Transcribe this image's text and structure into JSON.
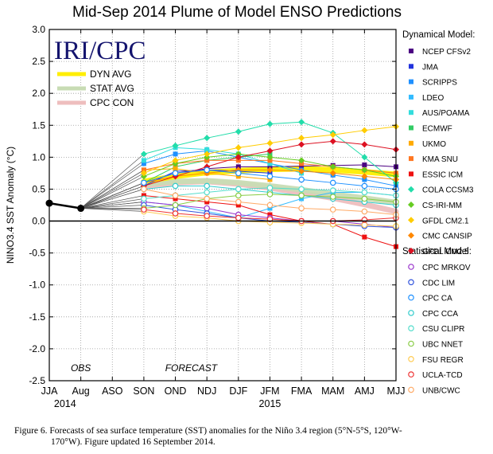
{
  "caption": {
    "line1": "Figure 6. Forecasts of sea surface temperature (SST) anomalies for the Niño 3.4 region (5°N-5°S, 120°W-",
    "line2": "170°W).  Figure updated 16 September 2014."
  },
  "chart_data": {
    "type": "line",
    "title": "Mid-Sep 2014 Plume of Model ENSO Predictions",
    "ylabel": "NINO3.4 SST Anomaly (°C)",
    "xlabel": "",
    "ylim": [
      -2.5,
      3.0
    ],
    "yticks": [
      3.0,
      2.5,
      2.0,
      1.5,
      1.0,
      0.5,
      0.0,
      -0.5,
      -1.0,
      -1.5,
      -2.0,
      -2.5
    ],
    "ytick_labels": [
      "3.0",
      "2.5",
      "2.0",
      "1.5",
      "1.0",
      "0.5",
      "0.0",
      "-0.5",
      "-1.0",
      "-1.5",
      "-2.0",
      "-2.5"
    ],
    "categories": [
      "JJA",
      "Aug",
      "ASO",
      "SON",
      "OND",
      "NDJ",
      "DJF",
      "JFM",
      "FMA",
      "MAM",
      "AMJ",
      "MJJ"
    ],
    "year_labels": [
      {
        "text": "2014",
        "at": 0.5
      },
      {
        "text": "2015",
        "at": 7.0
      }
    ],
    "annotations": [
      {
        "text": "OBS",
        "x": 1.0,
        "y": -2.3
      },
      {
        "text": "FORECAST",
        "x": 4.5,
        "y": -2.3
      }
    ],
    "watermark": "IRI/CPC",
    "observed": {
      "x": [
        0,
        1
      ],
      "y": [
        0.28,
        0.2
      ]
    },
    "averages": [
      {
        "name": "DYN AVG",
        "color": "#ffee00",
        "x": [
          3,
          4,
          5,
          6,
          7,
          8,
          9,
          10,
          11
        ],
        "y": [
          0.62,
          0.7,
          0.76,
          0.79,
          0.81,
          0.82,
          0.8,
          0.77,
          0.73
        ]
      },
      {
        "name": "STAT AVG",
        "color": "#c8dcb4",
        "x": [
          3,
          4,
          5,
          6,
          7,
          8,
          9,
          10,
          11
        ],
        "y": [
          0.58,
          0.62,
          0.63,
          0.6,
          0.55,
          0.49,
          0.42,
          0.36,
          0.29
        ]
      },
      {
        "name": "CPC CON",
        "color": "#eebebe",
        "x": [
          3,
          4,
          5,
          6,
          7,
          8,
          9,
          10,
          11
        ],
        "y": [
          0.55,
          0.6,
          0.62,
          0.58,
          0.52,
          0.44,
          0.36,
          0.26,
          0.15
        ]
      }
    ],
    "legend_dynamical_title": "Dynamical Model:",
    "legend_statistical_title": "Statistical Model:",
    "series": [
      {
        "name": "NCEP CFSv2",
        "group": "dynamical",
        "color": "#4b0082",
        "marker": "square",
        "x": [
          3,
          4,
          5,
          6,
          7,
          8,
          9,
          10,
          11
        ],
        "y": [
          0.6,
          0.75,
          0.82,
          0.85,
          0.85,
          0.86,
          0.87,
          0.88,
          0.85
        ]
      },
      {
        "name": "JMA",
        "group": "dynamical",
        "color": "#2233dd",
        "marker": "square",
        "x": [
          3,
          4,
          5,
          6,
          7
        ],
        "y": [
          0.55,
          0.78,
          0.8,
          0.78,
          0.75
        ]
      },
      {
        "name": "SCRIPPS",
        "group": "dynamical",
        "color": "#1e90ff",
        "marker": "square",
        "x": [
          3,
          4,
          5,
          6,
          7,
          8,
          9,
          10,
          11
        ],
        "y": [
          0.9,
          1.05,
          1.1,
          1.0,
          0.9,
          0.8,
          0.72,
          0.65,
          0.55
        ]
      },
      {
        "name": "LDEO",
        "group": "dynamical",
        "color": "#33bbff",
        "marker": "square",
        "x": [
          3,
          4,
          5,
          6,
          7,
          8,
          9,
          10,
          11
        ],
        "y": [
          0.3,
          0.25,
          0.15,
          0.05,
          0.2,
          0.35,
          0.45,
          0.45,
          0.4
        ]
      },
      {
        "name": "AUS/POAMA",
        "group": "dynamical",
        "color": "#33dddd",
        "marker": "square",
        "x": [
          3,
          4,
          5,
          6,
          7,
          8
        ],
        "y": [
          0.95,
          1.15,
          1.12,
          1.05,
          0.9,
          0.75
        ]
      },
      {
        "name": "ECMWF",
        "group": "dynamical",
        "color": "#33cc66",
        "marker": "square",
        "x": [
          3,
          4,
          5,
          6,
          7
        ],
        "y": [
          0.6,
          0.85,
          0.95,
          1.0,
          1.05
        ]
      },
      {
        "name": "UKMO",
        "group": "dynamical",
        "color": "#ffaa00",
        "marker": "square",
        "x": [
          3,
          4,
          5,
          6,
          7
        ],
        "y": [
          0.8,
          0.82,
          0.75,
          0.7,
          0.65
        ]
      },
      {
        "name": "KMA SNU",
        "group": "dynamical",
        "color": "#ff7722",
        "marker": "square",
        "x": [
          3,
          4,
          5,
          6,
          7,
          8,
          9,
          10,
          11
        ],
        "y": [
          0.8,
          0.9,
          0.95,
          0.95,
          0.95,
          0.9,
          0.85,
          0.8,
          0.75
        ]
      },
      {
        "name": "ESSIC ICM",
        "group": "dynamical",
        "color": "#ee1111",
        "marker": "square",
        "x": [
          3,
          4,
          5,
          6,
          7,
          8,
          9,
          10,
          11
        ],
        "y": [
          0.4,
          0.35,
          0.3,
          0.25,
          0.1,
          0.0,
          -0.05,
          -0.25,
          -0.4
        ]
      },
      {
        "name": "COLA CCSM3",
        "group": "dynamical",
        "color": "#22ddaa",
        "marker": "diamond",
        "x": [
          3,
          4,
          5,
          6,
          7,
          8,
          9,
          10,
          11
        ],
        "y": [
          1.05,
          1.18,
          1.3,
          1.4,
          1.52,
          1.55,
          1.38,
          1.0,
          0.6
        ]
      },
      {
        "name": "CS-IRI-MM",
        "group": "dynamical",
        "color": "#66cc22",
        "marker": "diamond",
        "x": [
          3,
          4,
          5,
          6,
          7,
          8,
          9,
          10,
          11
        ],
        "y": [
          0.7,
          0.9,
          1.0,
          1.05,
          1.0,
          0.95,
          0.85,
          0.8,
          0.7
        ]
      },
      {
        "name": "GFDL CM2.1",
        "group": "dynamical",
        "color": "#ffcc00",
        "marker": "diamond",
        "x": [
          3,
          4,
          5,
          6,
          7,
          8,
          9,
          10,
          11
        ],
        "y": [
          0.75,
          0.95,
          1.05,
          1.15,
          1.22,
          1.3,
          1.35,
          1.42,
          1.48
        ]
      },
      {
        "name": "CMC CANSIP",
        "group": "dynamical",
        "color": "#ff8800",
        "marker": "diamond",
        "x": [
          3,
          4,
          5,
          6,
          7,
          8,
          9,
          10,
          11
        ],
        "y": [
          0.6,
          0.7,
          0.75,
          0.8,
          0.8,
          0.78,
          0.75,
          0.7,
          0.65
        ]
      },
      {
        "name": "GFDL CM2.5",
        "group": "dynamical",
        "color": "#dd1122",
        "marker": "diamond",
        "x": [
          3,
          4,
          5,
          6,
          7,
          8,
          9,
          10,
          11
        ],
        "y": [
          0.55,
          0.7,
          0.85,
          1.0,
          1.1,
          1.2,
          1.25,
          1.2,
          1.12
        ]
      },
      {
        "name": "CPC MRKOV",
        "group": "statistical",
        "color": "#9933cc",
        "marker": "circle",
        "x": [
          3,
          4,
          5,
          6,
          7,
          8,
          9,
          10,
          11
        ],
        "y": [
          0.3,
          0.25,
          0.2,
          0.1,
          0.05,
          0.0,
          0.0,
          -0.05,
          -0.1
        ]
      },
      {
        "name": "CDC LIM",
        "group": "statistical",
        "color": "#3355dd",
        "marker": "circle",
        "x": [
          3,
          4,
          5,
          6,
          7,
          8,
          9,
          10,
          11
        ],
        "y": [
          0.25,
          0.18,
          0.12,
          0.05,
          0.0,
          -0.02,
          -0.05,
          -0.08,
          -0.1
        ]
      },
      {
        "name": "CPC CA",
        "group": "statistical",
        "color": "#1e90ff",
        "marker": "circle",
        "x": [
          3,
          4,
          5,
          6,
          7,
          8,
          9,
          10,
          11
        ],
        "y": [
          0.6,
          0.75,
          0.8,
          0.75,
          0.7,
          0.65,
          0.6,
          0.55,
          0.5
        ]
      },
      {
        "name": "CPC CCA",
        "group": "statistical",
        "color": "#33cccc",
        "marker": "circle",
        "x": [
          3,
          4,
          5,
          6,
          7,
          8,
          9,
          10,
          11
        ],
        "y": [
          0.5,
          0.55,
          0.55,
          0.5,
          0.45,
          0.4,
          0.35,
          0.3,
          0.25
        ]
      },
      {
        "name": "CSU CLIPR",
        "group": "statistical",
        "color": "#55ddcc",
        "marker": "circle",
        "x": [
          3,
          4,
          5,
          6,
          7,
          8,
          9,
          10,
          11
        ],
        "y": [
          0.35,
          0.4,
          0.45,
          0.5,
          0.52,
          0.5,
          0.48,
          0.45,
          0.4
        ]
      },
      {
        "name": "UBC NNET",
        "group": "statistical",
        "color": "#88cc44",
        "marker": "circle",
        "x": [
          3,
          4,
          5,
          6,
          7,
          8,
          9,
          10,
          11
        ],
        "y": [
          0.2,
          0.25,
          0.35,
          0.4,
          0.42,
          0.4,
          0.38,
          0.35,
          0.3
        ]
      },
      {
        "name": "FSU REGR",
        "group": "statistical",
        "color": "#ffcc55",
        "marker": "circle",
        "x": [
          3,
          4,
          5,
          6,
          7,
          8,
          9,
          10,
          11
        ],
        "y": [
          0.15,
          0.08,
          0.05,
          0.0,
          -0.02,
          -0.03,
          -0.05,
          -0.06,
          -0.08
        ]
      },
      {
        "name": "UCLA-TCD",
        "group": "statistical",
        "color": "#ee3333",
        "marker": "circle",
        "x": [
          3,
          4,
          5,
          6,
          7,
          8,
          9,
          10,
          11
        ],
        "y": [
          0.18,
          0.12,
          0.08,
          0.05,
          0.03,
          0.0,
          0.0,
          0.02,
          0.05
        ]
      },
      {
        "name": "UNB/CWC",
        "group": "statistical",
        "color": "#ffaa66",
        "marker": "circle",
        "x": [
          3,
          4,
          5,
          6,
          7,
          8,
          9,
          10,
          11
        ],
        "y": [
          0.5,
          0.4,
          0.35,
          0.3,
          0.25,
          0.2,
          0.18,
          0.15,
          0.1
        ]
      }
    ]
  }
}
